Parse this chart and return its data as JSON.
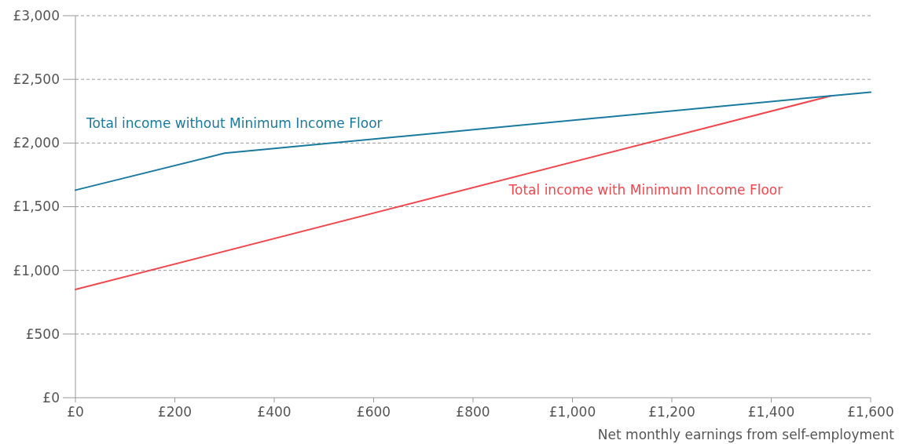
{
  "chart_data": {
    "type": "line",
    "xlabel": "Net monthly earnings from self-employment",
    "xlim": [
      0,
      1600
    ],
    "ylim": [
      0,
      3000
    ],
    "xticks": [
      {
        "value": 0,
        "label": "£0"
      },
      {
        "value": 200,
        "label": "£200"
      },
      {
        "value": 400,
        "label": "£400"
      },
      {
        "value": 600,
        "label": "£600"
      },
      {
        "value": 800,
        "label": "£800"
      },
      {
        "value": 1000,
        "label": "£1,000"
      },
      {
        "value": 1200,
        "label": "£1,200"
      },
      {
        "value": 1400,
        "label": "£1,400"
      },
      {
        "value": 1600,
        "label": "£1,600"
      }
    ],
    "yticks": [
      {
        "value": 0,
        "label": "£0"
      },
      {
        "value": 500,
        "label": "£500"
      },
      {
        "value": 1000,
        "label": "£1,000"
      },
      {
        "value": 1500,
        "label": "£1,500"
      },
      {
        "value": 2000,
        "label": "£2,000"
      },
      {
        "value": 2500,
        "label": "£2,500"
      },
      {
        "value": 3000,
        "label": "£3,000"
      }
    ],
    "grid": "y",
    "line_style": "solid",
    "series": [
      {
        "name": "Total income with Minimum Income Floor",
        "color": "#f0484e",
        "x": [
          0,
          1520
        ],
        "values": [
          850,
          2370
        ]
      },
      {
        "name": "Total income without Minimum Income Floor",
        "color": "#1a7a9e",
        "x": [
          0,
          300,
          1600
        ],
        "values": [
          1630,
          1920,
          2400
        ]
      }
    ]
  }
}
